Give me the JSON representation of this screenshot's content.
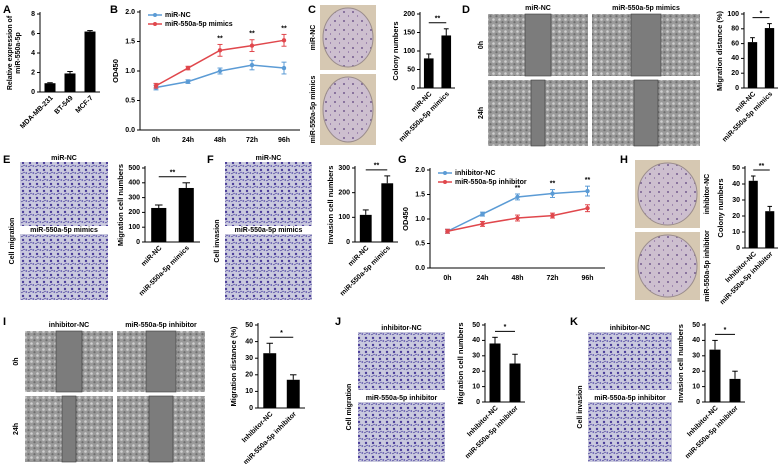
{
  "chart_data": [
    {
      "panel": "A",
      "type": "bar",
      "ylabel": [
        "Relative expression of",
        "miR-550a-5p"
      ],
      "categories": [
        "MDA-MB-231",
        "BT-549",
        "MCF-7"
      ],
      "values": [
        0.9,
        1.9,
        6.2
      ],
      "errors": [
        0.05,
        0.2,
        0.1
      ],
      "color": "#000000",
      "ylim": [
        0,
        8
      ],
      "yticks": [
        0,
        2,
        4,
        6,
        8
      ]
    },
    {
      "panel": "B",
      "type": "line",
      "ylabel": "OD450",
      "categories": [
        "0h",
        "24h",
        "48h",
        "72h",
        "96h"
      ],
      "series": [
        {
          "name": "miR-NC",
          "color": "#5b9bd5",
          "values": [
            0.72,
            0.82,
            1.0,
            1.1,
            1.05
          ],
          "errors": [
            0.04,
            0.03,
            0.05,
            0.08,
            0.1
          ]
        },
        {
          "name": "miR-550a-5p mimics",
          "color": "#e0474c",
          "values": [
            0.75,
            1.05,
            1.35,
            1.43,
            1.52
          ],
          "errors": [
            0.04,
            0.03,
            0.1,
            0.1,
            0.1
          ]
        }
      ],
      "ylim": [
        0,
        2
      ],
      "yticks": [
        {
          "value": 0,
          "label": "0.0"
        },
        0.5,
        {
          "value": 1,
          "label": "1.0"
        },
        1.5,
        {
          "value": 2,
          "label": "2.0"
        }
      ],
      "annotations": [
        {
          "x": "48h",
          "text": "**"
        },
        {
          "x": "72h",
          "text": "**"
        },
        {
          "x": "96h",
          "text": "**"
        }
      ]
    },
    {
      "type": "bar",
      "ylabel": "Colony numbers",
      "categories": [
        "miR-NC",
        "miR-550a-5p mimics"
      ],
      "values": [
        80,
        142
      ],
      "errors": [
        12,
        18
      ],
      "color": "#000000",
      "ylim": [
        0,
        200
      ],
      "yticks": [
        0,
        50,
        100,
        150,
        200
      ],
      "significance": "**"
    },
    {
      "type": "bar",
      "ylabel": "Migration distance (%)",
      "categories": [
        "miR-NC",
        "miR-550a-5p mimics"
      ],
      "values": [
        62,
        81
      ],
      "errors": [
        6,
        6
      ],
      "color": "#000000",
      "ylim": [
        0,
        100
      ],
      "yticks": [
        0,
        20,
        40,
        60,
        80,
        100
      ],
      "significance": "*"
    },
    {
      "type": "bar",
      "ylabel": "Migration cell numbers",
      "categories": [
        "miR-NC",
        "miR-550a-5p mimics"
      ],
      "values": [
        230,
        365
      ],
      "errors": [
        20,
        35
      ],
      "color": "#000000",
      "ylim": [
        0,
        500
      ],
      "yticks": [
        0,
        100,
        200,
        300,
        400,
        500
      ],
      "significance": "**"
    },
    {
      "type": "bar",
      "ylabel": "Invasion cell numbers",
      "categories": [
        "miR-NC",
        "miR-550a-5p mimics"
      ],
      "values": [
        110,
        238
      ],
      "errors": [
        20,
        30
      ],
      "color": "#000000",
      "ylim": [
        0,
        300
      ],
      "yticks": [
        0,
        100,
        200,
        300
      ],
      "significance": "**"
    },
    {
      "panel": "G",
      "type": "line",
      "ylabel": "OD450",
      "categories": [
        "0h",
        "24h",
        "48h",
        "72h",
        "96h"
      ],
      "series": [
        {
          "name": "inhibitor-NC",
          "color": "#5b9bd5",
          "values": [
            0.75,
            1.1,
            1.45,
            1.52,
            1.57
          ],
          "errors": [
            0.04,
            0.04,
            0.06,
            0.08,
            0.1
          ]
        },
        {
          "name": "miR-550a-5p inhibitor",
          "color": "#e0474c",
          "values": [
            0.75,
            0.9,
            1.02,
            1.07,
            1.22
          ],
          "errors": [
            0.04,
            0.05,
            0.06,
            0.05,
            0.07
          ]
        }
      ],
      "ylim": [
        0,
        2
      ],
      "yticks": [
        {
          "value": 0,
          "label": "0.0"
        },
        0.5,
        {
          "value": 1,
          "label": "1.0"
        },
        1.5,
        {
          "value": 2,
          "label": "2.0"
        }
      ],
      "annotations": [
        {
          "x": "48h",
          "text": "**"
        },
        {
          "x": "72h",
          "text": "**"
        },
        {
          "x": "96h",
          "text": "**"
        }
      ]
    },
    {
      "type": "bar",
      "ylabel": "Colony numbers",
      "categories": [
        "Inhibitor-NC",
        "miR-550a-5p inhibitor"
      ],
      "values": [
        42,
        23
      ],
      "errors": [
        3,
        3
      ],
      "color": "#000000",
      "ylim": [
        0,
        50
      ],
      "yticks": [
        0,
        10,
        20,
        30,
        40,
        50
      ],
      "significance": "**"
    },
    {
      "type": "bar",
      "ylabel": "Migration distance (%)",
      "categories": [
        "Inhibitor-NC",
        "miR-550a-5p inhibitor"
      ],
      "values": [
        33,
        17
      ],
      "errors": [
        6,
        3
      ],
      "color": "#000000",
      "ylim": [
        0,
        50
      ],
      "yticks": [
        0,
        10,
        20,
        30,
        40,
        50
      ],
      "significance": "*"
    },
    {
      "type": "bar",
      "ylabel": "Migration cell numbers",
      "categories": [
        "Inhibitor-NC",
        "miR-550a-5p inhibitor"
      ],
      "values": [
        38,
        25
      ],
      "errors": [
        4,
        6
      ],
      "color": "#000000",
      "ylim": [
        0,
        50
      ],
      "yticks": [
        0,
        10,
        20,
        30,
        40,
        50
      ],
      "significance": "*"
    },
    {
      "type": "bar",
      "ylabel": "Invasion cell numbers",
      "categories": [
        "Inhibitor-NC",
        "miR-550a-5p inhibitor"
      ],
      "values": [
        34,
        15
      ],
      "errors": [
        6,
        5
      ],
      "color": "#000000",
      "ylim": [
        0,
        50
      ],
      "yticks": [
        0,
        10,
        20,
        30,
        40,
        50
      ],
      "significance": "*"
    }
  ],
  "image_panels": [
    {
      "panel": "C",
      "kind": "colony",
      "labels": [
        "miR-NC",
        "miR-550a-5p mimics"
      ]
    },
    {
      "panel": "D",
      "kind": "wound",
      "labels": [
        "miR-NC",
        "miR-550a-5p mimics"
      ],
      "row_labels": [
        "0h",
        "24h"
      ]
    },
    {
      "panel": "E",
      "kind": "transwell",
      "labels": [
        "miR-NC",
        "miR-550a-5p mimics"
      ],
      "side_label": "Cell migration"
    },
    {
      "panel": "F",
      "kind": "transwell",
      "labels": [
        "miR-NC",
        "miR-550a-5p mimics"
      ],
      "side_label": "Cell invasion"
    },
    {
      "panel": "H",
      "kind": "colony",
      "labels": [
        "inhibitor-NC",
        "miR-550a-5p inhibitor"
      ]
    },
    {
      "panel": "I",
      "kind": "wound",
      "labels": [
        "inhibitor-NC",
        "miR-550a-5p inhibitor"
      ],
      "row_labels": [
        "0h",
        "24h"
      ]
    },
    {
      "panel": "J",
      "kind": "transwell",
      "labels": [
        "inhibitor-NC",
        "miR-550a-5p inhibitor"
      ],
      "side_label": "Cell migration"
    },
    {
      "panel": "K",
      "kind": "transwell",
      "labels": [
        "inhibitor-NC",
        "miR-550a-5p inhibitor"
      ],
      "side_label": "Cell invasion"
    }
  ]
}
